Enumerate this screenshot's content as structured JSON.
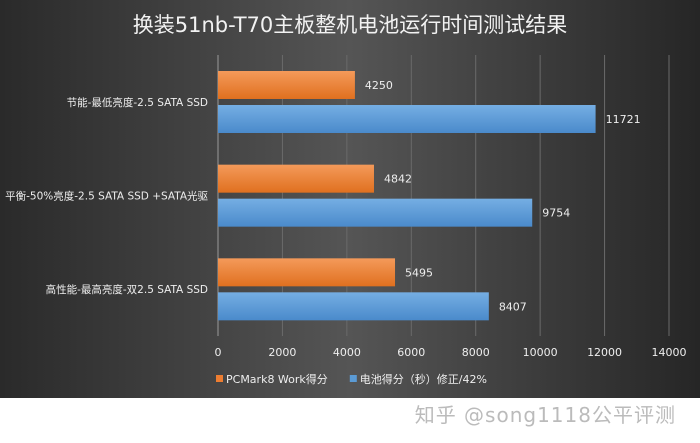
{
  "chart_data": {
    "type": "bar",
    "orientation": "horizontal",
    "title": "换装51nb-T70主板整机电池运行时间测试结果",
    "categories": [
      "节能-最低亮度-2.5 SATA SSD",
      "平衡-50%亮度-2.5 SATA SSD +SATA光驱",
      "高性能-最高亮度-双2.5 SATA SSD"
    ],
    "series": [
      {
        "name": "PCMark8 Work得分",
        "color": "#ED7D31",
        "values": [
          4250,
          4842,
          5495
        ]
      },
      {
        "name": "电池得分（秒）修正/42%",
        "color": "#5B9BD5",
        "values": [
          11721,
          9754,
          8407
        ]
      }
    ],
    "xlim": [
      0,
      14000
    ],
    "xticks": [
      "0",
      "2000",
      "4000",
      "6000",
      "8000",
      "10000",
      "12000",
      "14000"
    ],
    "grid": true,
    "legend": "bottom-left",
    "data_labels": true
  },
  "watermark": "知乎 @song1118公平评测"
}
